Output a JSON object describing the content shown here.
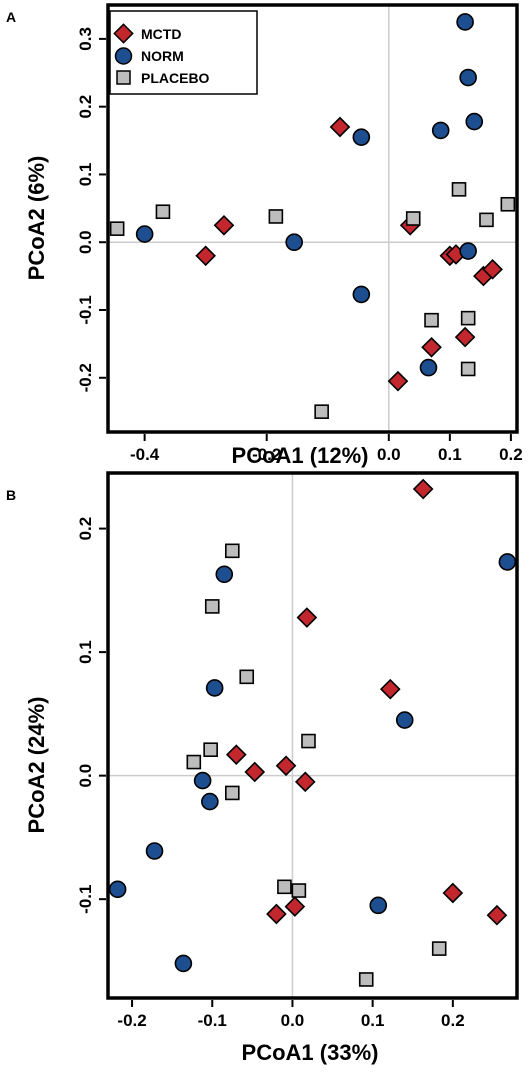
{
  "chart_data": [
    {
      "type": "scatter",
      "panel_label": "A",
      "xlabel": "PCoA1 (12%)",
      "ylabel": "PCoA2 (6%)",
      "xlim": [
        -0.46,
        0.21
      ],
      "ylim": [
        -0.28,
        0.35
      ],
      "xticks": [
        -0.4,
        -0.2,
        0.0,
        0.1,
        0.2
      ],
      "xtick_labels": [
        "-0.4",
        "-0.2",
        "0.0",
        "0.1",
        "0.2"
      ],
      "yticks": [
        -0.2,
        -0.1,
        0.0,
        0.1,
        0.2,
        0.3
      ],
      "ytick_labels": [
        "-0.2",
        "-0.1",
        "0.0",
        "0.1",
        "0.2",
        "0.3"
      ],
      "grid": false,
      "reference_lines": "x=0 and y=0",
      "legend_position": "top-left",
      "series": [
        {
          "name": "MCTD",
          "marker": "diamond",
          "color": "#c1272d",
          "x": [
            -0.08,
            -0.27,
            -0.3,
            0.035,
            0.1,
            0.11,
            0.07,
            0.125,
            0.015,
            0.155,
            0.17
          ],
          "y": [
            0.17,
            0.025,
            -0.02,
            0.025,
            -0.02,
            -0.018,
            -0.155,
            -0.14,
            -0.205,
            -0.05,
            -0.04
          ]
        },
        {
          "name": "NORM",
          "marker": "circle",
          "color": "#1d4e8f",
          "x": [
            -0.4,
            -0.155,
            -0.045,
            -0.045,
            0.085,
            0.125,
            0.13,
            0.14,
            0.13,
            0.065
          ],
          "y": [
            0.012,
            0.0,
            0.155,
            -0.077,
            0.165,
            0.325,
            0.243,
            0.178,
            -0.013,
            -0.185
          ]
        },
        {
          "name": "PLACEBO",
          "marker": "square",
          "color": "#bdbdbd",
          "x": [
            -0.445,
            -0.37,
            -0.185,
            -0.11,
            0.04,
            0.115,
            0.16,
            0.195,
            0.07,
            0.13,
            0.13
          ],
          "y": [
            0.02,
            0.045,
            0.038,
            -0.25,
            0.035,
            0.078,
            0.033,
            0.056,
            -0.115,
            -0.112,
            -0.187
          ]
        }
      ]
    },
    {
      "type": "scatter",
      "panel_label": "B",
      "xlabel": "PCoA1 (33%)",
      "ylabel": "PCoA2 (24%)",
      "xlim": [
        -0.23,
        0.28
      ],
      "ylim": [
        -0.18,
        0.245
      ],
      "xticks": [
        -0.2,
        -0.1,
        0.0,
        0.1,
        0.2
      ],
      "xtick_labels": [
        "-0.2",
        "-0.1",
        "0.0",
        "0.1",
        "0.2"
      ],
      "yticks": [
        -0.1,
        0.0,
        0.1,
        0.2
      ],
      "ytick_labels": [
        "-0.1",
        "0.0",
        "0.1",
        "0.2"
      ],
      "grid": false,
      "reference_lines": "x=0 and y=0",
      "series": [
        {
          "name": "MCTD",
          "marker": "diamond",
          "color": "#c1272d",
          "x": [
            0.163,
            0.018,
            0.122,
            -0.07,
            -0.047,
            -0.008,
            0.016,
            0.2,
            0.255,
            -0.02,
            0.003
          ],
          "y": [
            0.232,
            0.128,
            0.07,
            0.017,
            0.003,
            0.008,
            -0.005,
            -0.095,
            -0.113,
            -0.112,
            -0.106
          ],
          "point_names": [
            "",
            "",
            "",
            "",
            "",
            "",
            "",
            "",
            "",
            "",
            ""
          ]
        },
        {
          "name": "NORM",
          "marker": "circle",
          "color": "#1d4e8f",
          "x": [
            0.268,
            -0.085,
            -0.097,
            0.14,
            -0.112,
            -0.103,
            -0.172,
            -0.218,
            -0.136,
            0.107
          ],
          "y": [
            0.173,
            0.163,
            0.071,
            0.045,
            -0.004,
            -0.021,
            -0.061,
            -0.092,
            -0.152,
            -0.105
          ]
        },
        {
          "name": "PLACEBO",
          "marker": "square",
          "color": "#bdbdbd",
          "x": [
            -0.075,
            -0.1,
            -0.057,
            -0.102,
            -0.123,
            0.02,
            -0.075,
            -0.01,
            0.008,
            0.183,
            0.092
          ],
          "y": [
            0.182,
            0.137,
            0.08,
            0.021,
            0.011,
            0.028,
            -0.014,
            -0.09,
            -0.093,
            -0.14,
            -0.165
          ]
        }
      ]
    }
  ]
}
